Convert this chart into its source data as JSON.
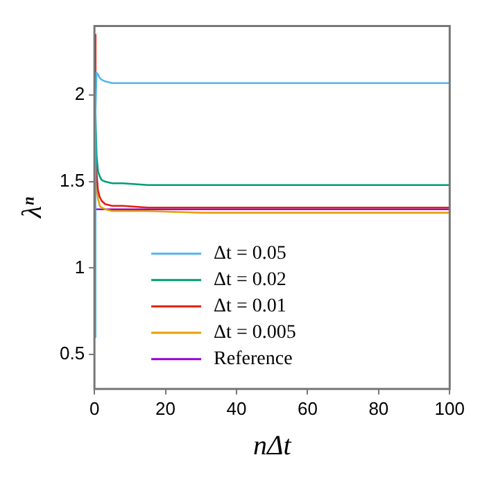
{
  "chart_data": {
    "type": "line",
    "xlabel": "nΔt",
    "ylabel": "λⁿ",
    "xlim": [
      0,
      100
    ],
    "ylim": [
      0.3,
      2.4
    ],
    "xticks": [
      0,
      20,
      40,
      60,
      80,
      100
    ],
    "yticks": [
      0.5,
      1,
      1.5,
      2
    ],
    "grid": false,
    "legend": "bottom left",
    "marker": "none",
    "line_style": "solid",
    "series": [
      {
        "name": "Δt = 0.05",
        "color": "#56b4e9",
        "x": [
          0,
          0.3,
          0.6,
          1,
          1.5,
          2,
          3,
          5,
          8,
          15,
          30,
          60,
          100
        ],
        "values": [
          0.6,
          1.9,
          2.13,
          2.12,
          2.1,
          2.09,
          2.08,
          2.07,
          2.07,
          2.07,
          2.07,
          2.07,
          2.07
        ]
      },
      {
        "name": "Δt = 0.02",
        "color": "#009e73",
        "x": [
          0,
          0.3,
          0.6,
          1,
          1.5,
          2,
          3,
          5,
          8,
          15,
          30,
          60,
          100
        ],
        "values": [
          0.65,
          1.9,
          1.65,
          1.56,
          1.53,
          1.51,
          1.5,
          1.49,
          1.49,
          1.48,
          1.48,
          1.48,
          1.48
        ]
      },
      {
        "name": "Δt = 0.01",
        "color": "#e51e10",
        "x": [
          0,
          0.3,
          0.6,
          1,
          1.5,
          2,
          3,
          5,
          8,
          15,
          30,
          60,
          100
        ],
        "values": [
          2.35,
          1.8,
          1.55,
          1.45,
          1.41,
          1.39,
          1.37,
          1.36,
          1.36,
          1.35,
          1.35,
          1.35,
          1.35
        ]
      },
      {
        "name": "Δt = 0.005",
        "color": "#e69f00",
        "x": [
          0,
          0.3,
          0.6,
          1,
          1.5,
          2,
          3,
          5,
          8,
          15,
          30,
          60,
          100
        ],
        "values": [
          2.3,
          1.7,
          1.48,
          1.4,
          1.36,
          1.35,
          1.34,
          1.33,
          1.33,
          1.33,
          1.32,
          1.32,
          1.32
        ]
      },
      {
        "name": "Reference",
        "color": "#9400d3",
        "x": [
          0,
          100
        ],
        "values": [
          1.34,
          1.34
        ]
      }
    ]
  }
}
